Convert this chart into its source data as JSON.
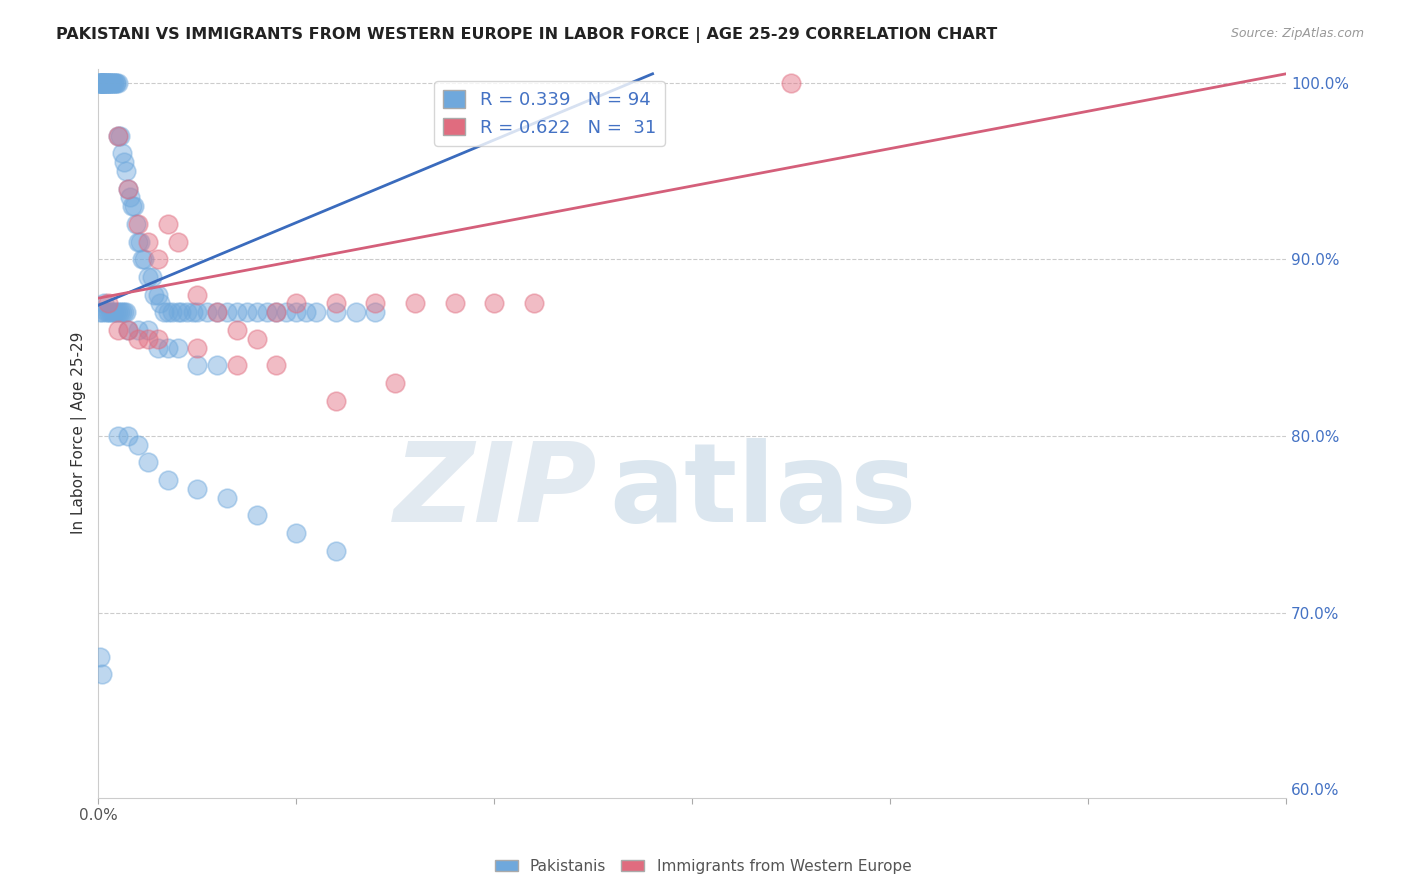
{
  "title": "PAKISTANI VS IMMIGRANTS FROM WESTERN EUROPE IN LABOR FORCE | AGE 25-29 CORRELATION CHART",
  "source": "Source: ZipAtlas.com",
  "ylabel": "In Labor Force | Age 25-29",
  "watermark_zip": "ZIP",
  "watermark_atlas": "atlas",
  "xmin": 0.0,
  "xmax": 0.6,
  "ymin": 0.595,
  "ymax": 1.008,
  "blue_R": 0.339,
  "blue_N": 94,
  "pink_R": 0.622,
  "pink_N": 31,
  "blue_color": "#6fa8dc",
  "pink_color": "#e06c7f",
  "blue_line_color": "#3a6bbd",
  "pink_line_color": "#d45f7a",
  "legend1_label": "Pakistanis",
  "legend2_label": "Immigrants from Western Europe",
  "blue_x": [
    0.001,
    0.001,
    0.001,
    0.001,
    0.001,
    0.002,
    0.002,
    0.002,
    0.002,
    0.002,
    0.003,
    0.003,
    0.003,
    0.003,
    0.004,
    0.004,
    0.004,
    0.005,
    0.005,
    0.005,
    0.006,
    0.006,
    0.006,
    0.007,
    0.007,
    0.008,
    0.008,
    0.009,
    0.009,
    0.01,
    0.01,
    0.011,
    0.012,
    0.013,
    0.014,
    0.015,
    0.016,
    0.017,
    0.018,
    0.019,
    0.02,
    0.021,
    0.022,
    0.023,
    0.025,
    0.027,
    0.028,
    0.03,
    0.031,
    0.033,
    0.035,
    0.037,
    0.04,
    0.042,
    0.045,
    0.048,
    0.05,
    0.055,
    0.06,
    0.065,
    0.07,
    0.075,
    0.08,
    0.085,
    0.09,
    0.095,
    0.1,
    0.105,
    0.11,
    0.12,
    0.13,
    0.14,
    0.015,
    0.02,
    0.025,
    0.03,
    0.035,
    0.04,
    0.05,
    0.06,
    0.001,
    0.002,
    0.003,
    0.004,
    0.005,
    0.006,
    0.007,
    0.008,
    0.009,
    0.01,
    0.011,
    0.012,
    0.013,
    0.014
  ],
  "blue_y": [
    1.0,
    1.0,
    1.0,
    1.0,
    1.0,
    1.0,
    1.0,
    1.0,
    1.0,
    1.0,
    1.0,
    1.0,
    1.0,
    1.0,
    1.0,
    1.0,
    1.0,
    1.0,
    1.0,
    1.0,
    1.0,
    1.0,
    1.0,
    1.0,
    1.0,
    1.0,
    1.0,
    1.0,
    1.0,
    1.0,
    0.97,
    0.97,
    0.96,
    0.955,
    0.95,
    0.94,
    0.935,
    0.93,
    0.93,
    0.92,
    0.91,
    0.91,
    0.9,
    0.9,
    0.89,
    0.89,
    0.88,
    0.88,
    0.875,
    0.87,
    0.87,
    0.87,
    0.87,
    0.87,
    0.87,
    0.87,
    0.87,
    0.87,
    0.87,
    0.87,
    0.87,
    0.87,
    0.87,
    0.87,
    0.87,
    0.87,
    0.87,
    0.87,
    0.87,
    0.87,
    0.87,
    0.87,
    0.86,
    0.86,
    0.86,
    0.85,
    0.85,
    0.85,
    0.84,
    0.84,
    0.87,
    0.87,
    0.875,
    0.87,
    0.87,
    0.87,
    0.87,
    0.87,
    0.87,
    0.87,
    0.87,
    0.87,
    0.87,
    0.87
  ],
  "blue_x_low": [
    0.001,
    0.002,
    0.01,
    0.015,
    0.02,
    0.025,
    0.035,
    0.05,
    0.065,
    0.08,
    0.1,
    0.12
  ],
  "blue_y_low": [
    0.675,
    0.665,
    0.8,
    0.8,
    0.795,
    0.785,
    0.775,
    0.77,
    0.765,
    0.755,
    0.745,
    0.735
  ],
  "pink_x": [
    0.005,
    0.01,
    0.015,
    0.02,
    0.025,
    0.03,
    0.035,
    0.04,
    0.05,
    0.06,
    0.07,
    0.08,
    0.09,
    0.1,
    0.12,
    0.14,
    0.16,
    0.18,
    0.2,
    0.22,
    0.01,
    0.015,
    0.02,
    0.025,
    0.03,
    0.05,
    0.07,
    0.09,
    0.12,
    0.15,
    0.35
  ],
  "pink_y": [
    0.875,
    0.97,
    0.94,
    0.92,
    0.91,
    0.9,
    0.92,
    0.91,
    0.88,
    0.87,
    0.86,
    0.855,
    0.87,
    0.875,
    0.875,
    0.875,
    0.875,
    0.875,
    0.875,
    0.875,
    0.86,
    0.86,
    0.855,
    0.855,
    0.855,
    0.85,
    0.84,
    0.84,
    0.82,
    0.83,
    1.0
  ],
  "blue_trendline_x": [
    0.0,
    0.28
  ],
  "blue_trendline_y": [
    0.874,
    1.005
  ],
  "pink_trendline_x": [
    0.0,
    0.6
  ],
  "pink_trendline_y": [
    0.878,
    1.005
  ]
}
